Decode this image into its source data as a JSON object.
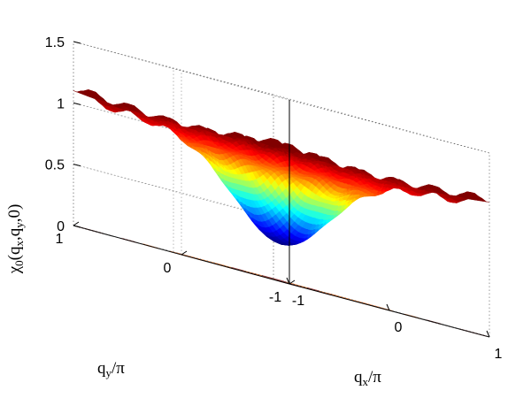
{
  "chart_data": {
    "type": "surface",
    "title": "",
    "zlabel": "χ0(qx,qy,0)",
    "xlabel": "qx/π",
    "ylabel": "qy/π",
    "xlim": [
      -1,
      1
    ],
    "ylim": [
      -1,
      1
    ],
    "zlim": [
      0,
      1.5
    ],
    "z_ticks": [
      {
        "value": 0,
        "label": "0"
      },
      {
        "value": 0.5,
        "label": "0.5"
      },
      {
        "value": 1,
        "label": "1"
      },
      {
        "value": 1.5,
        "label": "1.5"
      }
    ],
    "x_ticks": [
      {
        "value": -1,
        "label": "-1"
      },
      {
        "value": 0,
        "label": "0"
      },
      {
        "value": 1,
        "label": "1"
      }
    ],
    "y_ticks": [
      {
        "value": -1,
        "label": "-1"
      },
      {
        "value": 0,
        "label": "0"
      },
      {
        "value": 1,
        "label": "1"
      }
    ],
    "grid": true,
    "colormap": "jet",
    "surface": {
      "center_value": 0.3,
      "plateau_value": 1.05,
      "corner_value": 1.12
    },
    "contour_levels": [
      {
        "value": 0.4,
        "color": "#3a3aa0"
      },
      {
        "value": 0.55,
        "color": "#4a78d0"
      },
      {
        "value": 0.7,
        "color": "#48c8d8"
      },
      {
        "value": 0.85,
        "color": "#e8e040"
      },
      {
        "value": 1.0,
        "color": "#f08040"
      },
      {
        "value": 1.1,
        "color": "#a04040"
      }
    ]
  }
}
